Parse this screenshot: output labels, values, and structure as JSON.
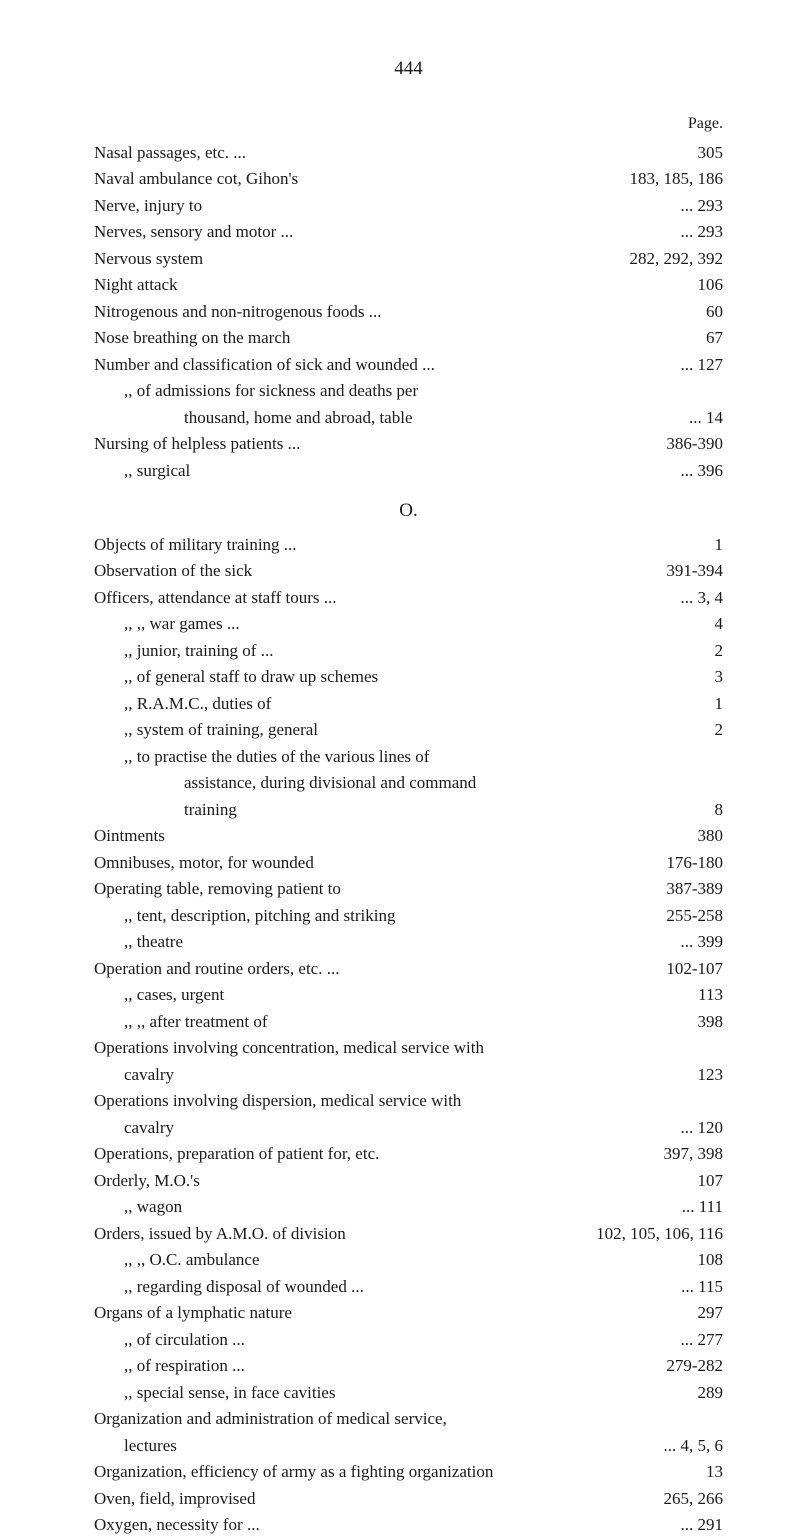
{
  "pageNumber": "444",
  "pageHeaderLabel": "Page.",
  "entries": [
    {
      "label": "Nasal passages, etc. ...",
      "page": "305",
      "indent": 0
    },
    {
      "label": "Naval ambulance cot, Gihon's",
      "page": "183, 185, 186",
      "indent": 0
    },
    {
      "label": "Nerve, injury to",
      "page": "... 293",
      "indent": 0
    },
    {
      "label": "Nerves, sensory and motor ...",
      "page": "... 293",
      "indent": 0
    },
    {
      "label": "Nervous system",
      "page": "282, 292, 392",
      "indent": 0
    },
    {
      "label": "Night attack",
      "page": "106",
      "indent": 0
    },
    {
      "label": "Nitrogenous and non-nitrogenous foods ...",
      "page": "60",
      "indent": 0
    },
    {
      "label": "Nose breathing on the march",
      "page": "67",
      "indent": 0
    },
    {
      "label": "Number and classification of sick and wounded ...",
      "page": "... 127",
      "indent": 0
    },
    {
      "label": ",,    of admissions for sickness and deaths per",
      "page": "",
      "indent": 1
    },
    {
      "label": "thousand, home and abroad, table",
      "page": "...  14",
      "indent": 3
    },
    {
      "label": "Nursing of helpless patients ...",
      "page": "386-390",
      "indent": 0
    },
    {
      "label": ",,     surgical",
      "page": "... 396",
      "indent": 1
    }
  ],
  "sectionLetter": "O.",
  "entriesO": [
    {
      "label": "Objects of military training ...",
      "page": "1",
      "indent": 0
    },
    {
      "label": "Observation of the sick",
      "page": "391-394",
      "indent": 0
    },
    {
      "label": "Officers, attendance at staff tours ...",
      "page": "... 3, 4",
      "indent": 0
    },
    {
      "label": ",,               ,,  war games ...",
      "page": "4",
      "indent": 1
    },
    {
      "label": ",,    junior, training of ...",
      "page": "2",
      "indent": 1
    },
    {
      "label": ",,    of general staff to draw up schemes",
      "page": "3",
      "indent": 1
    },
    {
      "label": ",,    R.A.M.C., duties of",
      "page": "1",
      "indent": 1
    },
    {
      "label": ",,    system of training, general",
      "page": "2",
      "indent": 1
    },
    {
      "label": ",,    to practise the duties of the various lines of",
      "page": "",
      "indent": 1
    },
    {
      "label": "assistance, during divisional and command",
      "page": "",
      "indent": 3
    },
    {
      "label": "training",
      "page": "8",
      "indent": 3
    },
    {
      "label": "Ointments",
      "page": "380",
      "indent": 0
    },
    {
      "label": "Omnibuses, motor, for wounded",
      "page": "176-180",
      "indent": 0
    },
    {
      "label": "Operating table, removing patient to",
      "page": "387-389",
      "indent": 0
    },
    {
      "label": ",,      tent, description, pitching and striking",
      "page": "255-258",
      "indent": 1
    },
    {
      "label": ",,      theatre",
      "page": "... 399",
      "indent": 1
    },
    {
      "label": "Operation and routine orders, etc. ...",
      "page": "102-107",
      "indent": 0
    },
    {
      "label": ",,      cases, urgent",
      "page": "113",
      "indent": 1
    },
    {
      "label": ",,      ,,    after treatment of",
      "page": "398",
      "indent": 1
    },
    {
      "label": "Operations involving concentration, medical service with",
      "page": "",
      "indent": 0
    },
    {
      "label": "cavalry",
      "page": "123",
      "indent": 1
    },
    {
      "label": "Operations involving dispersion, medical service with",
      "page": "",
      "indent": 0
    },
    {
      "label": "cavalry",
      "page": "... 120",
      "indent": 1
    },
    {
      "label": "Operations, preparation of patient for, etc.",
      "page": "397, 398",
      "indent": 0
    },
    {
      "label": "Orderly, M.O.'s",
      "page": "107",
      "indent": 0
    },
    {
      "label": ",,    wagon",
      "page": "... 111",
      "indent": 1
    },
    {
      "label": "Orders, issued by A.M.O. of division",
      "page": "102, 105, 106, 116",
      "indent": 0
    },
    {
      "label": ",,        ,,   O.C. ambulance",
      "page": "108",
      "indent": 1
    },
    {
      "label": ",,    regarding disposal of wounded ...",
      "page": "... 115",
      "indent": 1
    },
    {
      "label": "Organs of a lymphatic nature",
      "page": "297",
      "indent": 0
    },
    {
      "label": ",,    of circulation ...",
      "page": "... 277",
      "indent": 1
    },
    {
      "label": ",,    of respiration ...",
      "page": "279-282",
      "indent": 1
    },
    {
      "label": ",,    special sense, in face cavities",
      "page": "289",
      "indent": 1
    },
    {
      "label": "Organization and administration of medical service,",
      "page": "",
      "indent": 0
    },
    {
      "label": "lectures",
      "page": "... 4, 5, 6",
      "indent": 1
    },
    {
      "label": "Organization, efficiency of army as a fighting organization",
      "page": "13",
      "indent": 0
    },
    {
      "label": "Oven, field, improvised",
      "page": "265, 266",
      "indent": 0
    },
    {
      "label": "Oxygen, necessity for ...",
      "page": "... 291",
      "indent": 0
    }
  ]
}
